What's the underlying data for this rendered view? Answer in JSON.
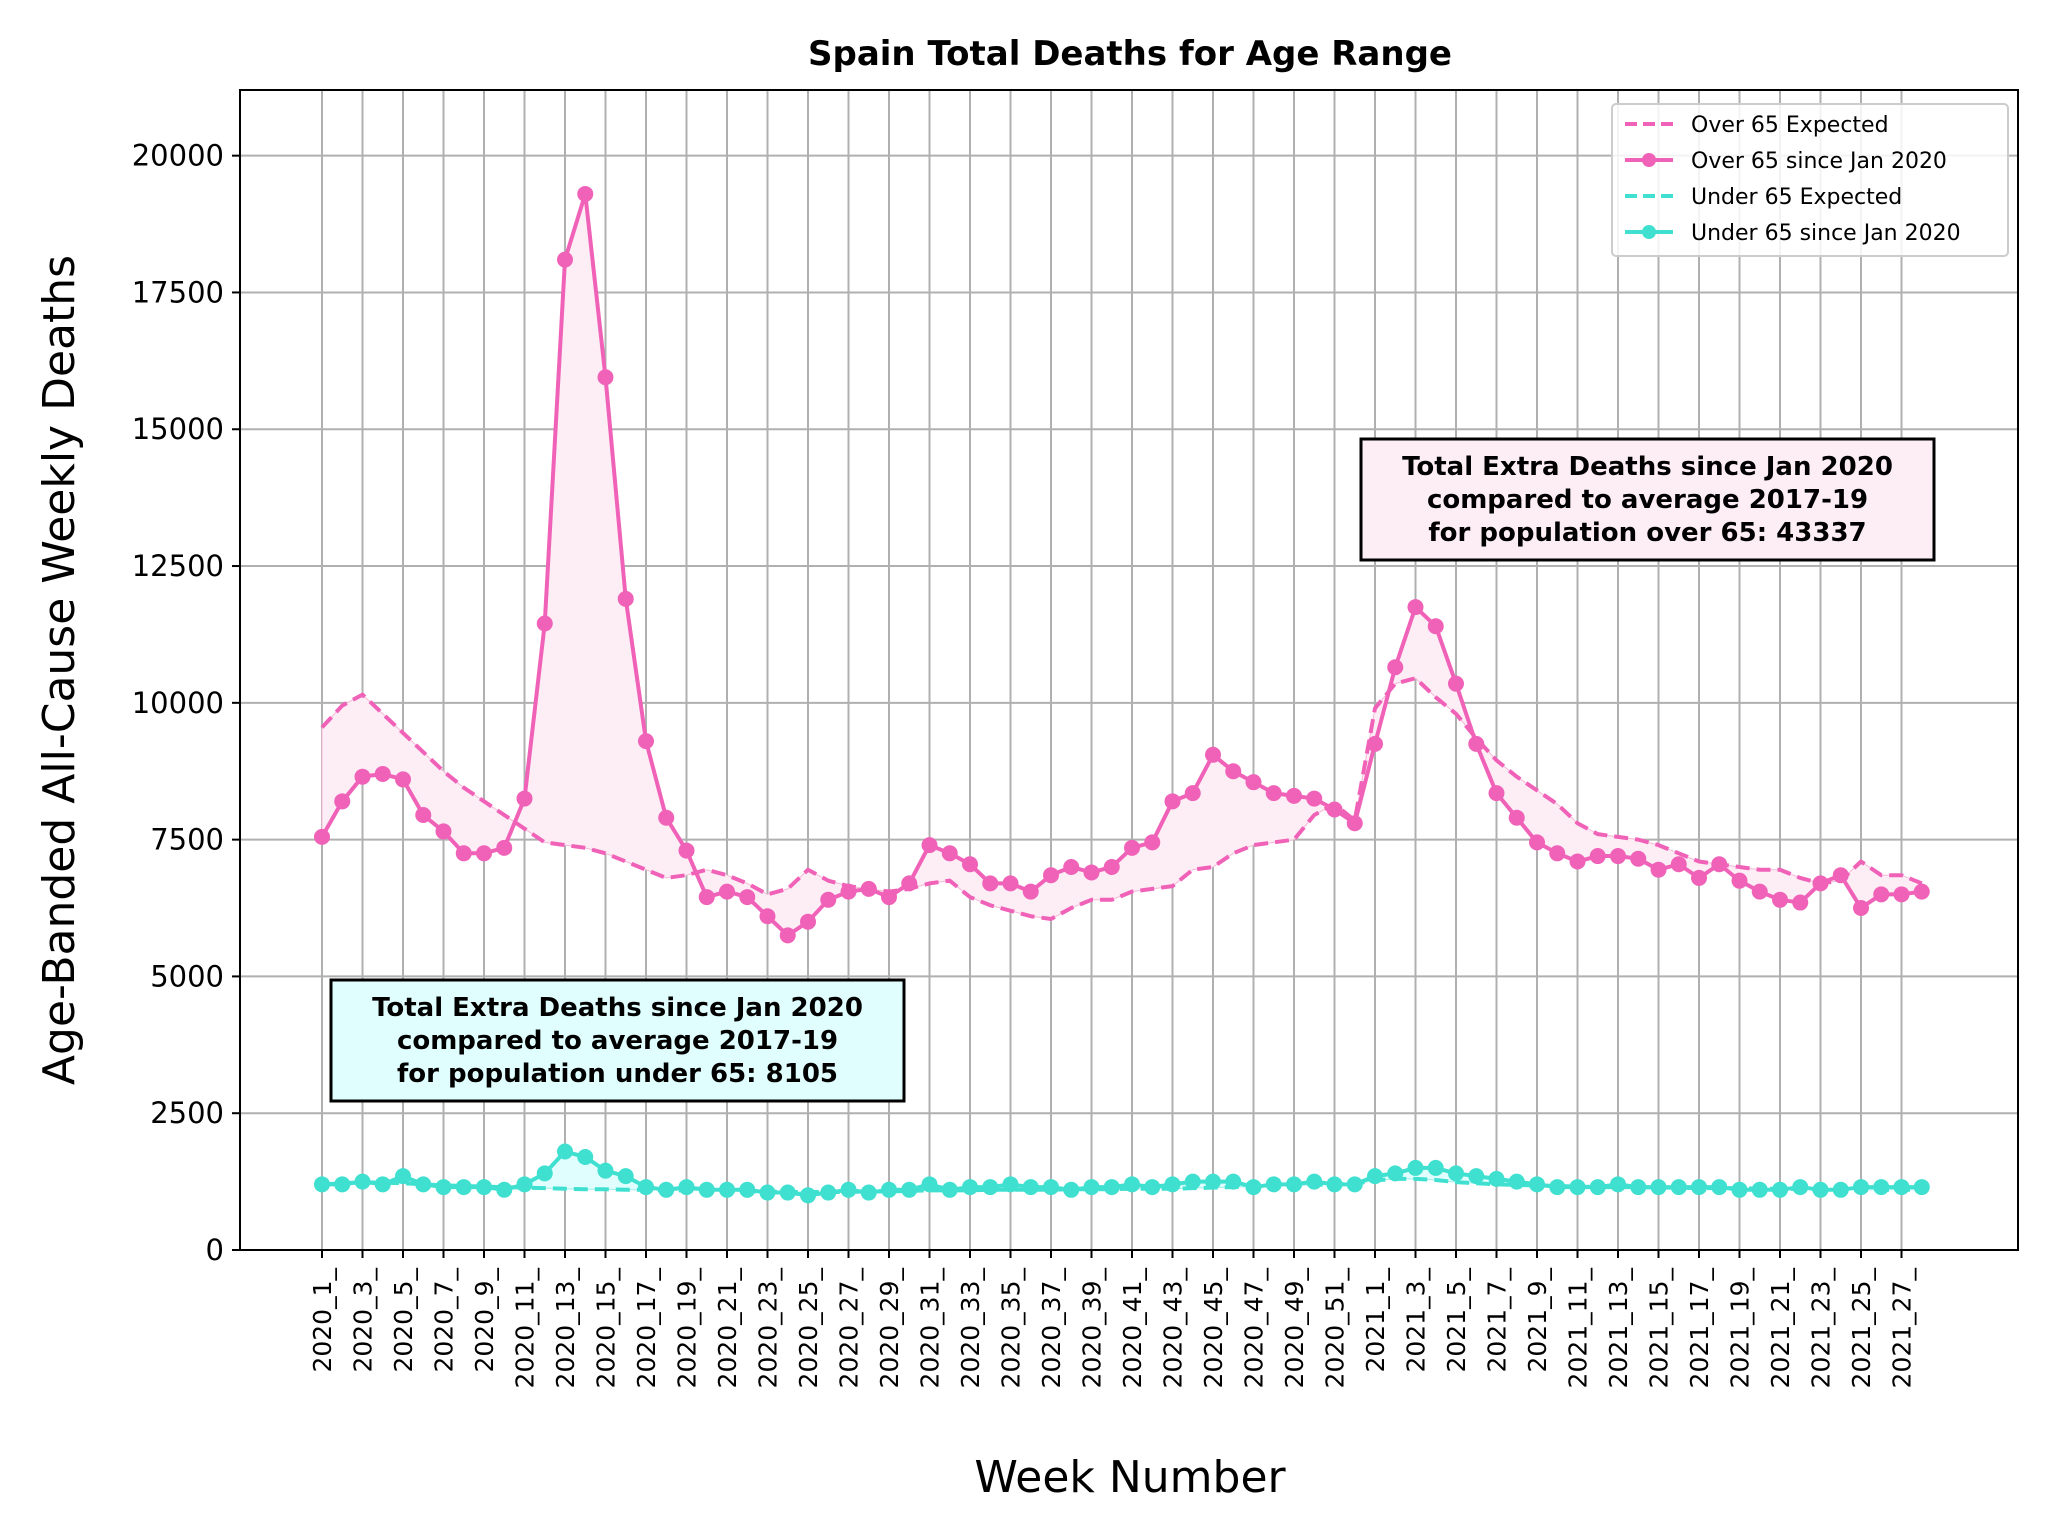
{
  "chart_data": {
    "type": "line",
    "title": "Spain Total Deaths for Age Range",
    "xlabel": "Week Number",
    "ylabel": "Age-Banded All-Cause Weekly Deaths",
    "ylim": [
      0,
      21200
    ],
    "yticks": [
      0,
      2500,
      5000,
      7500,
      10000,
      12500,
      15000,
      17500,
      20000
    ],
    "grid": true,
    "legend_position": "top-right",
    "x": [
      "2020_1",
      "2020_2",
      "2020_3",
      "2020_4",
      "2020_5",
      "2020_6",
      "2020_7",
      "2020_8",
      "2020_9",
      "2020_10",
      "2020_11",
      "2020_12",
      "2020_13",
      "2020_14",
      "2020_15",
      "2020_16",
      "2020_17",
      "2020_18",
      "2020_19",
      "2020_20",
      "2020_21",
      "2020_22",
      "2020_23",
      "2020_24",
      "2020_25",
      "2020_26",
      "2020_27",
      "2020_28",
      "2020_29",
      "2020_30",
      "2020_31",
      "2020_32",
      "2020_33",
      "2020_34",
      "2020_35",
      "2020_36",
      "2020_37",
      "2020_38",
      "2020_39",
      "2020_40",
      "2020_41",
      "2020_42",
      "2020_43",
      "2020_44",
      "2020_45",
      "2020_46",
      "2020_47",
      "2020_48",
      "2020_49",
      "2020_50",
      "2020_51",
      "2020_52",
      "2021_1",
      "2021_2",
      "2021_3",
      "2021_4",
      "2021_5",
      "2021_6",
      "2021_7",
      "2021_8",
      "2021_9",
      "2021_10",
      "2021_11",
      "2021_12",
      "2021_13",
      "2021_14",
      "2021_15",
      "2021_16",
      "2021_17",
      "2021_18",
      "2021_19",
      "2021_20",
      "2021_21",
      "2021_22",
      "2021_23",
      "2021_24",
      "2021_25",
      "2021_26",
      "2021_27",
      "2021_28"
    ],
    "x_tick_labels": [
      "2020_1",
      "2020_3",
      "2020_5",
      "2020_7",
      "2020_9",
      "2020_11",
      "2020_13",
      "2020_15",
      "2020_17",
      "2020_19",
      "2020_21",
      "2020_23",
      "2020_25",
      "2020_27",
      "2020_29",
      "2020_31",
      "2020_33",
      "2020_35",
      "2020_37",
      "2020_39",
      "2020_41",
      "2020_43",
      "2020_45",
      "2020_47",
      "2020_49",
      "2020_51",
      "2021_1",
      "2021_3",
      "2021_5",
      "2021_7",
      "2021_9",
      "2021_11",
      "2021_13",
      "2021_15",
      "2021_17",
      "2021_19",
      "2021_21",
      "2021_23",
      "2021_25",
      "2021_27"
    ],
    "series": [
      {
        "name": "Over 65 Expected",
        "style": "dashed",
        "color": "#f062b8",
        "values": [
          9550,
          9950,
          10150,
          9800,
          9450,
          9100,
          8750,
          8450,
          8200,
          7950,
          7700,
          7450,
          7400,
          7350,
          7250,
          7100,
          6950,
          6800,
          6850,
          6950,
          6850,
          6700,
          6500,
          6600,
          6950,
          6750,
          6650,
          6600,
          6550,
          6600,
          6700,
          6750,
          6450,
          6300,
          6200,
          6100,
          6050,
          6250,
          6400,
          6400,
          6550,
          6600,
          6650,
          6950,
          7000,
          7250,
          7400,
          7450,
          7500,
          7950,
          8150,
          7850,
          9900,
          10350,
          10450,
          10100,
          9800,
          9350,
          8950,
          8650,
          8400,
          8150,
          7800,
          7600,
          7550,
          7500,
          7400,
          7250,
          7100,
          7050,
          7000,
          6950,
          6950,
          6800,
          6700,
          6750,
          7100,
          6850,
          6850,
          6700
        ]
      },
      {
        "name": "Over 65 since Jan 2020",
        "style": "solid-markers",
        "color": "#f062b8",
        "values": [
          7550,
          8200,
          8650,
          8700,
          8600,
          7950,
          7650,
          7250,
          7250,
          7350,
          8250,
          11450,
          18100,
          19300,
          15950,
          11900,
          9300,
          7900,
          7300,
          6450,
          6550,
          6450,
          6100,
          5750,
          6000,
          6400,
          6550,
          6600,
          6450,
          6700,
          7400,
          7250,
          7050,
          6700,
          6700,
          6550,
          6850,
          7000,
          6900,
          7000,
          7350,
          7450,
          8200,
          8350,
          9050,
          8750,
          8550,
          8350,
          8300,
          8250,
          8050,
          7800,
          9250,
          10650,
          11750,
          11400,
          10350,
          9250,
          8350,
          7900,
          7450,
          7250,
          7100,
          7200,
          7200,
          7150,
          6950,
          7050,
          6800,
          7050,
          6750,
          6550,
          6400,
          6350,
          6700,
          6850,
          6250,
          6500,
          6500,
          6550
        ]
      },
      {
        "name": "Under 65 Expected",
        "style": "dashed",
        "color": "#40e0d0",
        "values": [
          1200,
          1220,
          1240,
          1230,
          1220,
          1200,
          1180,
          1170,
          1160,
          1150,
          1140,
          1130,
          1120,
          1110,
          1110,
          1100,
          1100,
          1090,
          1090,
          1080,
          1080,
          1070,
          1070,
          1060,
          1060,
          1060,
          1060,
          1070,
          1070,
          1080,
          1090,
          1090,
          1090,
          1100,
          1100,
          1100,
          1100,
          1110,
          1110,
          1110,
          1120,
          1120,
          1120,
          1130,
          1140,
          1150,
          1160,
          1170,
          1180,
          1190,
          1200,
          1210,
          1270,
          1300,
          1300,
          1280,
          1240,
          1220,
          1200,
          1190,
          1180,
          1170,
          1160,
          1150,
          1150,
          1150,
          1140,
          1140,
          1130,
          1130,
          1130,
          1120,
          1120,
          1110,
          1110,
          1110,
          1100,
          1100,
          1100,
          1100
        ]
      },
      {
        "name": "Under 65 since Jan 2020",
        "style": "solid-markers",
        "color": "#40e0d0",
        "values": [
          1200,
          1200,
          1250,
          1200,
          1350,
          1200,
          1150,
          1150,
          1150,
          1100,
          1200,
          1400,
          1800,
          1700,
          1450,
          1350,
          1150,
          1100,
          1150,
          1100,
          1100,
          1100,
          1050,
          1050,
          1000,
          1050,
          1100,
          1050,
          1100,
          1100,
          1200,
          1100,
          1150,
          1150,
          1200,
          1150,
          1150,
          1100,
          1150,
          1150,
          1200,
          1150,
          1200,
          1250,
          1250,
          1250,
          1150,
          1200,
          1200,
          1250,
          1200,
          1200,
          1350,
          1400,
          1500,
          1500,
          1400,
          1350,
          1300,
          1250,
          1200,
          1150,
          1150,
          1150,
          1200,
          1150,
          1150,
          1150,
          1150,
          1150,
          1100,
          1100,
          1100,
          1150,
          1100,
          1100,
          1150,
          1150,
          1150,
          1150
        ]
      }
    ],
    "annotations": [
      {
        "lines": [
          "Total Extra Deaths since Jan 2020",
          "compared to average 2017-19",
          "for population over 65: 43337"
        ],
        "background": "#fdeef5"
      },
      {
        "lines": [
          "Total Extra Deaths since Jan 2020",
          "compared to average 2017-19",
          "for population under 65: 8105"
        ],
        "background": "#e0fefe"
      }
    ]
  }
}
